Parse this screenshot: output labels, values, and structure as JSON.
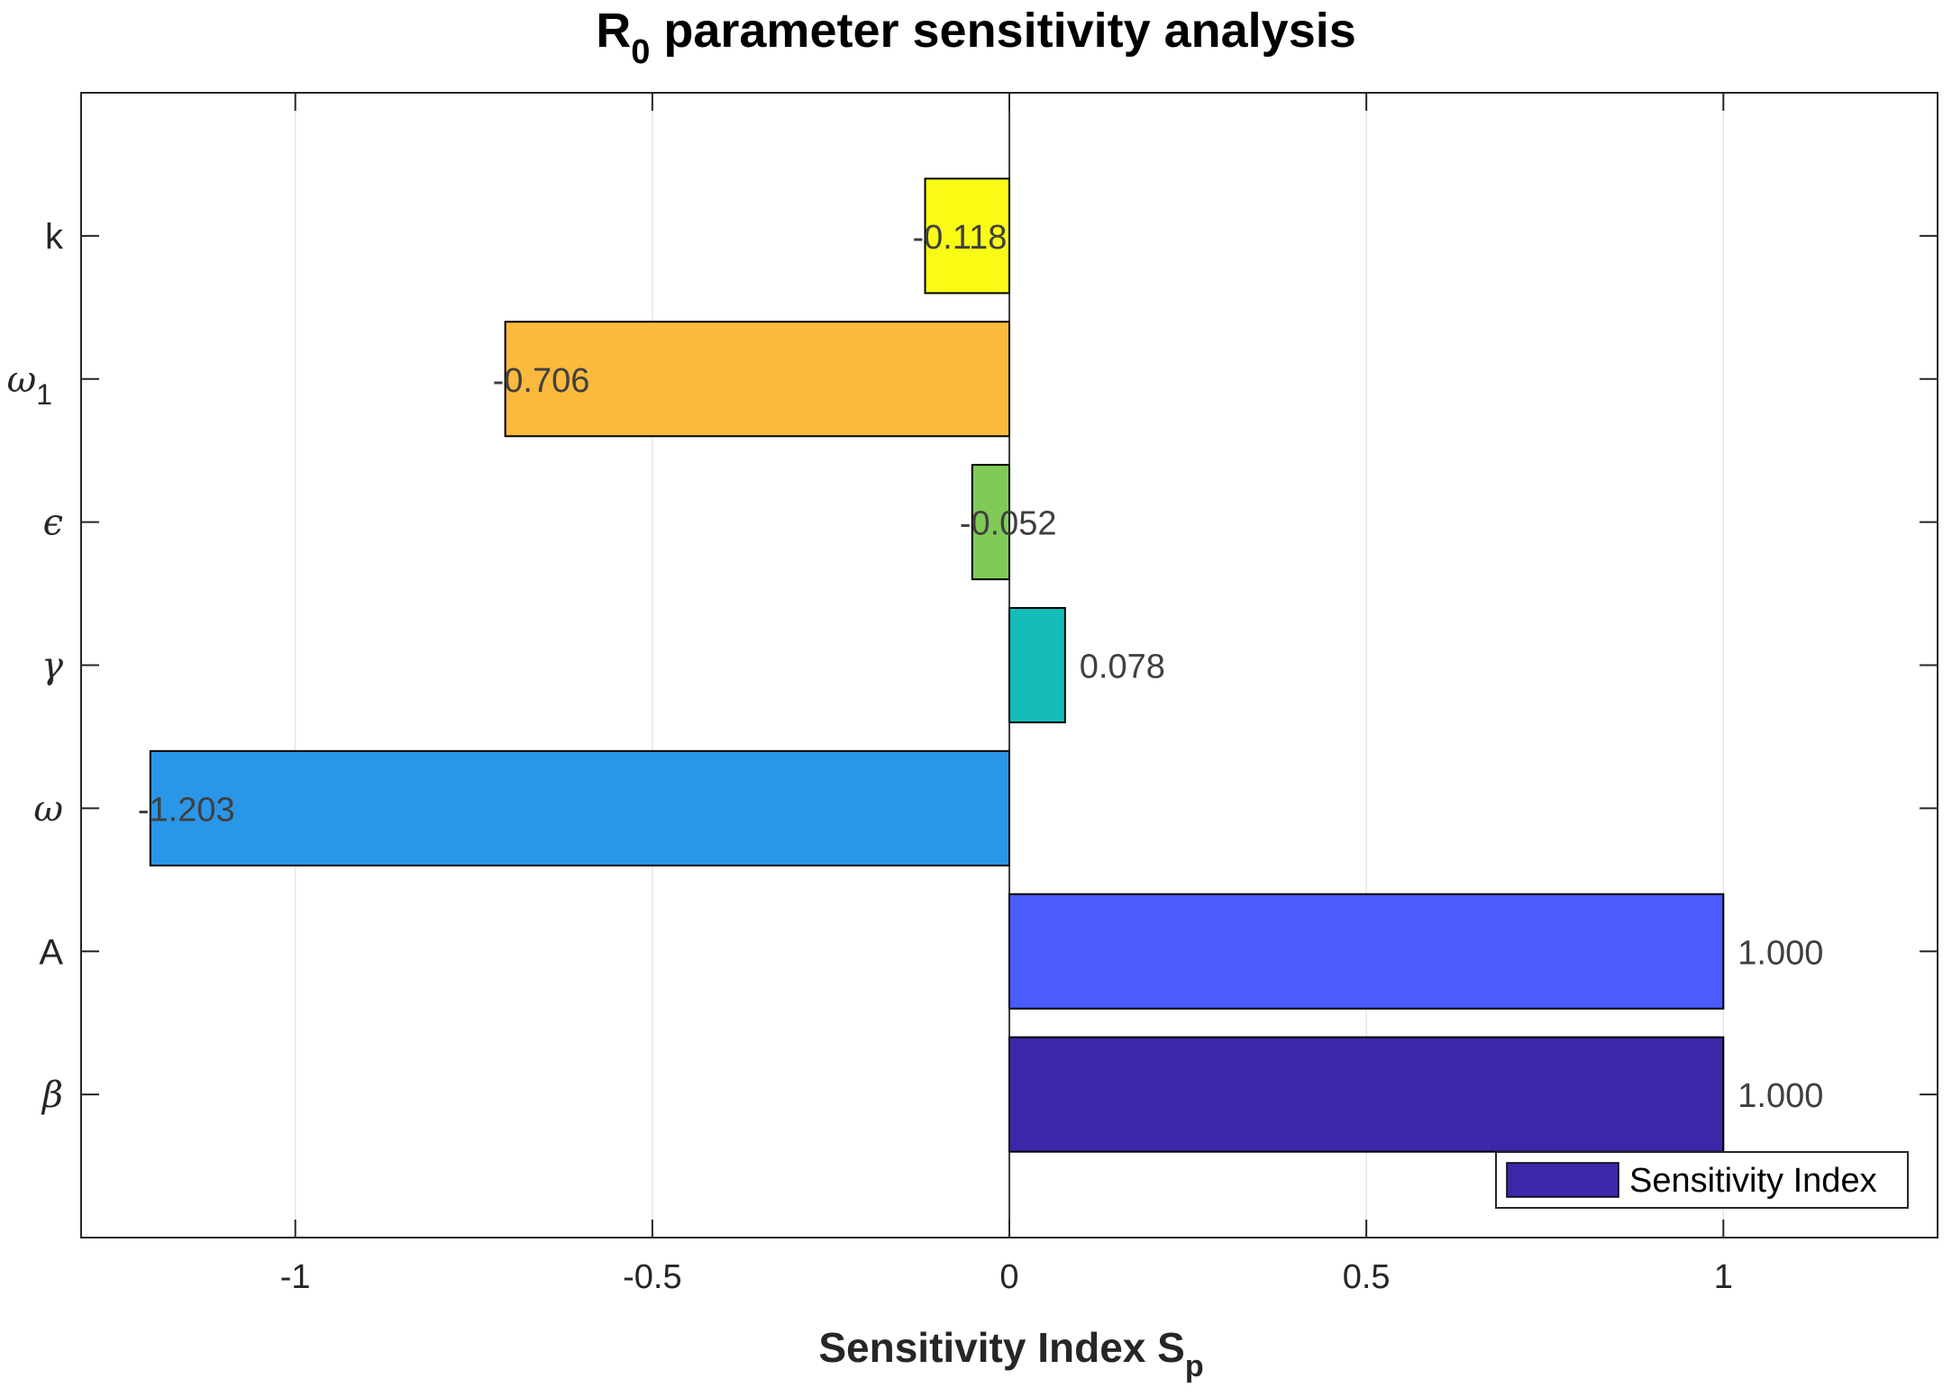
{
  "chart_data": {
    "type": "bar",
    "orientation": "horizontal",
    "title": {
      "main": "R",
      "subscript": "0",
      "rest": " parameter sensitivity analysis"
    },
    "xlabel": {
      "main": "Sensitivity Index S",
      "subscript": "p"
    },
    "ylabel": "",
    "xlim": [
      -1.3,
      1.3
    ],
    "x_ticks": [
      -1,
      -0.5,
      0,
      0.5,
      1
    ],
    "x_tick_labels": [
      "-1",
      "-0.5",
      "0",
      "0.5",
      "1"
    ],
    "grid": "x",
    "legend": {
      "label": "Sensitivity Index",
      "color": "#3E26A8",
      "placement": "bottom-right"
    },
    "categories": [
      {
        "label": "β",
        "sub": "",
        "math": true,
        "value": 1.0,
        "value_label": "1.000",
        "color": "#3E26A8"
      },
      {
        "label": "A",
        "sub": "",
        "math": false,
        "value": 1.0,
        "value_label": "1.000",
        "color": "#4A5CFC"
      },
      {
        "label": "ω",
        "sub": "",
        "math": true,
        "value": -1.203,
        "value_label": "-1.203",
        "color": "#2A96E8"
      },
      {
        "label": "γ",
        "sub": "",
        "math": true,
        "value": 0.078,
        "value_label": "0.078",
        "color": "#14BDB9"
      },
      {
        "label": "ϵ",
        "sub": "",
        "math": true,
        "value": -0.052,
        "value_label": "-0.052",
        "color": "#80CB58"
      },
      {
        "label": "ω",
        "sub": "1",
        "math": true,
        "value": -0.706,
        "value_label": "-0.706",
        "color": "#FBB93D"
      },
      {
        "label": "k",
        "sub": "",
        "math": false,
        "value": -0.118,
        "value_label": "-0.118",
        "color": "#F9FB14"
      }
    ]
  }
}
